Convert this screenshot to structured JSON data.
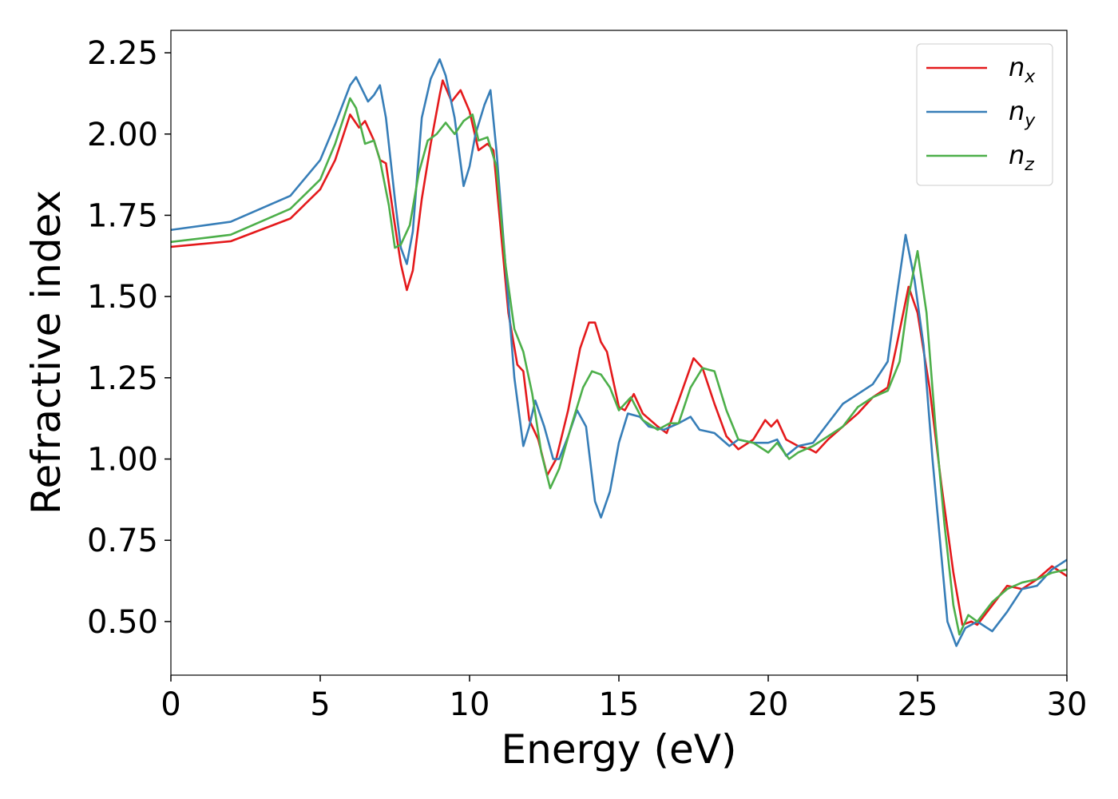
{
  "chart_data": {
    "type": "line",
    "xlabel": "Energy (eV)",
    "ylabel": "Refractive index",
    "xlim": [
      0,
      30
    ],
    "ylim": [
      0.335,
      2.319
    ],
    "xticks": [
      0,
      5,
      10,
      15,
      20,
      25,
      30
    ],
    "yticks": [
      {
        "value": 0.5,
        "label": "0.50"
      },
      {
        "value": 0.75,
        "label": "0.75"
      },
      {
        "value": 1.0,
        "label": "1.00"
      },
      {
        "value": 1.25,
        "label": "1.25"
      },
      {
        "value": 1.5,
        "label": "1.50"
      },
      {
        "value": 1.75,
        "label": "1.75"
      },
      {
        "value": 2.0,
        "label": "2.00"
      },
      {
        "value": 2.25,
        "label": "2.25"
      }
    ],
    "grid": false,
    "legend": "upper right",
    "series": [
      {
        "name": "n_x",
        "color": "#e41a1c",
        "x": [
          0,
          2,
          4,
          5,
          5.5,
          6,
          6.3,
          6.5,
          6.8,
          7.0,
          7.2,
          7.5,
          7.7,
          7.9,
          8.1,
          8.4,
          8.7,
          9.0,
          9.1,
          9.4,
          9.7,
          10.0,
          10.3,
          10.6,
          10.8,
          11.0,
          11.3,
          11.6,
          11.8,
          12.0,
          12.3,
          12.6,
          12.9,
          13.3,
          13.7,
          14.0,
          14.2,
          14.4,
          14.6,
          15.0,
          15.2,
          15.5,
          15.8,
          16.3,
          16.6,
          17.0,
          17.5,
          17.8,
          18.2,
          18.6,
          19.0,
          19.5,
          19.9,
          20.1,
          20.3,
          20.6,
          21.0,
          21.4,
          21.6,
          22.0,
          22.5,
          23.0,
          23.5,
          24.0,
          24.3,
          24.7,
          25.0,
          25.4,
          25.8,
          26.2,
          26.5,
          26.8,
          27.0,
          27.5,
          28.0,
          28.5,
          29.0,
          29.5,
          30.0
        ],
        "values": [
          1.653,
          1.67,
          1.74,
          1.83,
          1.92,
          2.06,
          2.02,
          2.04,
          1.98,
          1.92,
          1.91,
          1.72,
          1.6,
          1.52,
          1.58,
          1.8,
          1.97,
          2.12,
          2.165,
          2.1,
          2.135,
          2.07,
          1.95,
          1.97,
          1.95,
          1.75,
          1.45,
          1.29,
          1.27,
          1.12,
          1.06,
          0.95,
          1.0,
          1.15,
          1.34,
          1.42,
          1.42,
          1.36,
          1.33,
          1.16,
          1.15,
          1.2,
          1.14,
          1.1,
          1.08,
          1.18,
          1.31,
          1.28,
          1.17,
          1.07,
          1.03,
          1.06,
          1.12,
          1.1,
          1.12,
          1.06,
          1.04,
          1.03,
          1.02,
          1.06,
          1.1,
          1.14,
          1.19,
          1.22,
          1.35,
          1.53,
          1.45,
          1.22,
          0.92,
          0.65,
          0.49,
          0.5,
          0.49,
          0.55,
          0.61,
          0.6,
          0.63,
          0.67,
          0.64
        ]
      },
      {
        "name": "n_y",
        "color": "#377eb8",
        "x": [
          0,
          2,
          4,
          5,
          5.5,
          6,
          6.2,
          6.6,
          6.8,
          7.0,
          7.2,
          7.5,
          7.7,
          7.9,
          8.1,
          8.4,
          8.7,
          9.0,
          9.2,
          9.5,
          9.8,
          10.0,
          10.2,
          10.5,
          10.7,
          10.9,
          11.2,
          11.5,
          11.8,
          12.0,
          12.2,
          12.5,
          12.8,
          13.0,
          13.3,
          13.6,
          13.9,
          14.2,
          14.4,
          14.7,
          15.0,
          15.3,
          15.7,
          16.0,
          16.5,
          17.0,
          17.4,
          17.7,
          18.2,
          18.7,
          19.0,
          19.5,
          20.0,
          20.3,
          20.6,
          21.0,
          21.5,
          22.0,
          22.5,
          23.0,
          23.5,
          24.0,
          24.3,
          24.6,
          24.9,
          25.2,
          25.5,
          25.8,
          26.0,
          26.3,
          26.6,
          27.0,
          27.5,
          28.0,
          28.5,
          29.0,
          29.5,
          30.0
        ],
        "values": [
          1.705,
          1.73,
          1.81,
          1.92,
          2.03,
          2.15,
          2.175,
          2.1,
          2.12,
          2.15,
          2.05,
          1.8,
          1.65,
          1.6,
          1.7,
          2.05,
          2.17,
          2.23,
          2.18,
          2.05,
          1.84,
          1.9,
          2.0,
          2.09,
          2.135,
          1.95,
          1.6,
          1.25,
          1.04,
          1.1,
          1.18,
          1.1,
          1.0,
          1.0,
          1.07,
          1.15,
          1.1,
          0.87,
          0.82,
          0.9,
          1.05,
          1.14,
          1.13,
          1.1,
          1.09,
          1.11,
          1.13,
          1.09,
          1.08,
          1.04,
          1.06,
          1.05,
          1.05,
          1.06,
          1.01,
          1.04,
          1.05,
          1.11,
          1.17,
          1.2,
          1.23,
          1.3,
          1.5,
          1.69,
          1.55,
          1.35,
          1.0,
          0.7,
          0.5,
          0.425,
          0.48,
          0.5,
          0.47,
          0.53,
          0.6,
          0.61,
          0.66,
          0.69
        ]
      },
      {
        "name": "n_z",
        "color": "#4daf4a",
        "x": [
          0,
          2,
          4,
          5,
          5.5,
          6,
          6.2,
          6.5,
          6.8,
          7.0,
          7.3,
          7.5,
          7.7,
          8.0,
          8.3,
          8.6,
          8.9,
          9.2,
          9.5,
          9.8,
          10.1,
          10.3,
          10.6,
          10.9,
          11.2,
          11.5,
          11.8,
          12.1,
          12.4,
          12.7,
          13.0,
          13.4,
          13.8,
          14.1,
          14.4,
          14.7,
          15.0,
          15.4,
          15.8,
          16.3,
          16.7,
          17.0,
          17.4,
          17.8,
          18.2,
          18.6,
          19.0,
          19.5,
          20.0,
          20.3,
          20.7,
          21.0,
          21.5,
          22.0,
          22.5,
          23.0,
          23.5,
          24.0,
          24.4,
          24.7,
          25.0,
          25.3,
          25.6,
          25.9,
          26.2,
          26.4,
          26.7,
          27.0,
          27.5,
          28.0,
          28.5,
          29.0,
          29.5,
          30.0
        ],
        "values": [
          1.668,
          1.69,
          1.77,
          1.86,
          1.97,
          2.11,
          2.08,
          1.97,
          1.98,
          1.92,
          1.78,
          1.65,
          1.66,
          1.72,
          1.88,
          1.98,
          2.0,
          2.035,
          2.0,
          2.04,
          2.06,
          1.98,
          1.99,
          1.9,
          1.6,
          1.4,
          1.33,
          1.2,
          1.02,
          0.91,
          0.97,
          1.1,
          1.22,
          1.27,
          1.26,
          1.22,
          1.15,
          1.19,
          1.12,
          1.09,
          1.11,
          1.11,
          1.22,
          1.28,
          1.27,
          1.15,
          1.06,
          1.05,
          1.02,
          1.05,
          1.0,
          1.02,
          1.04,
          1.07,
          1.1,
          1.16,
          1.19,
          1.21,
          1.3,
          1.5,
          1.64,
          1.45,
          1.1,
          0.8,
          0.55,
          0.46,
          0.52,
          0.5,
          0.56,
          0.6,
          0.62,
          0.63,
          0.65,
          0.66
        ]
      }
    ]
  }
}
